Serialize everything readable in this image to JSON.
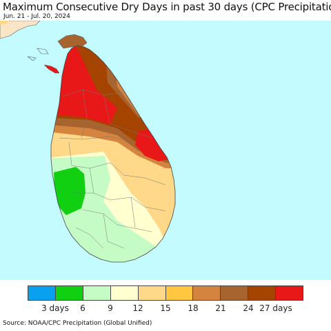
{
  "header": {
    "title": "Maximum Consecutive Dry Days in past 30 days (CPC Precipitation)",
    "subtitle": "Jun. 21 - Jul. 20, 2024"
  },
  "map": {
    "ocean_color": "#c4fbff",
    "land_color_outside": "#fbe5c6"
  },
  "legend": {
    "colors": [
      "#0aa0f0",
      "#11cf11",
      "#c5fcc5",
      "#ffffd0",
      "#ffd88a",
      "#ffc640",
      "#d4843e",
      "#a8642e",
      "#a44400",
      "#e81818"
    ],
    "ticks": [
      {
        "label": "3 days",
        "pos": 1
      },
      {
        "label": "6",
        "pos": 2
      },
      {
        "label": "9",
        "pos": 3
      },
      {
        "label": "12",
        "pos": 4
      },
      {
        "label": "15",
        "pos": 5
      },
      {
        "label": "18",
        "pos": 6
      },
      {
        "label": "21",
        "pos": 7
      },
      {
        "label": "24",
        "pos": 8
      },
      {
        "label": "27 days",
        "pos": 9
      }
    ]
  },
  "footer": {
    "source": "Source: NOAA/CPC Precipitation (Global Unified)"
  }
}
